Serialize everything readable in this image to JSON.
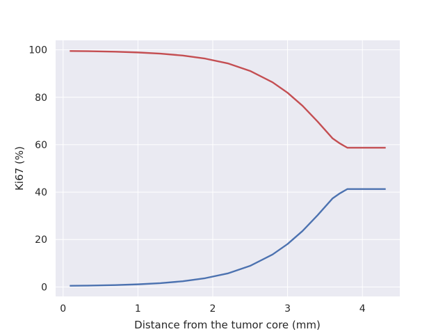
{
  "chart_data": {
    "type": "line",
    "title": "",
    "xlabel": "Distance from the tumor core (mm)",
    "ylabel": "Ki67 (%)",
    "xlim": [
      -0.1,
      4.5
    ],
    "ylim": [
      -4,
      104
    ],
    "xticks": [
      0,
      1,
      2,
      3,
      4
    ],
    "yticks": [
      0,
      20,
      40,
      60,
      80,
      100
    ],
    "grid": true,
    "background": "#EAEAF2",
    "grid_color": "#FFFFFF",
    "series": [
      {
        "color": "#C44E52",
        "x": [
          0.1,
          0.4,
          0.7,
          1.0,
          1.3,
          1.6,
          1.9,
          2.2,
          2.5,
          2.8,
          3.0,
          3.2,
          3.4,
          3.6,
          3.7,
          3.8,
          4.0,
          4.3
        ],
        "y": [
          99.5,
          99.4,
          99.2,
          98.9,
          98.4,
          97.6,
          96.3,
          94.3,
          91.1,
          86.3,
          81.9,
          76.4,
          69.8,
          62.7,
          60.5,
          58.7,
          58.7,
          58.7
        ]
      },
      {
        "color": "#4C72B0",
        "x": [
          0.1,
          0.4,
          0.7,
          1.0,
          1.3,
          1.6,
          1.9,
          2.2,
          2.5,
          2.8,
          3.0,
          3.2,
          3.4,
          3.6,
          3.7,
          3.8,
          4.0,
          4.3
        ],
        "y": [
          0.5,
          0.6,
          0.8,
          1.1,
          1.6,
          2.4,
          3.7,
          5.7,
          8.9,
          13.7,
          18.1,
          23.6,
          30.2,
          37.3,
          39.5,
          41.3,
          41.3,
          41.3
        ]
      }
    ]
  }
}
